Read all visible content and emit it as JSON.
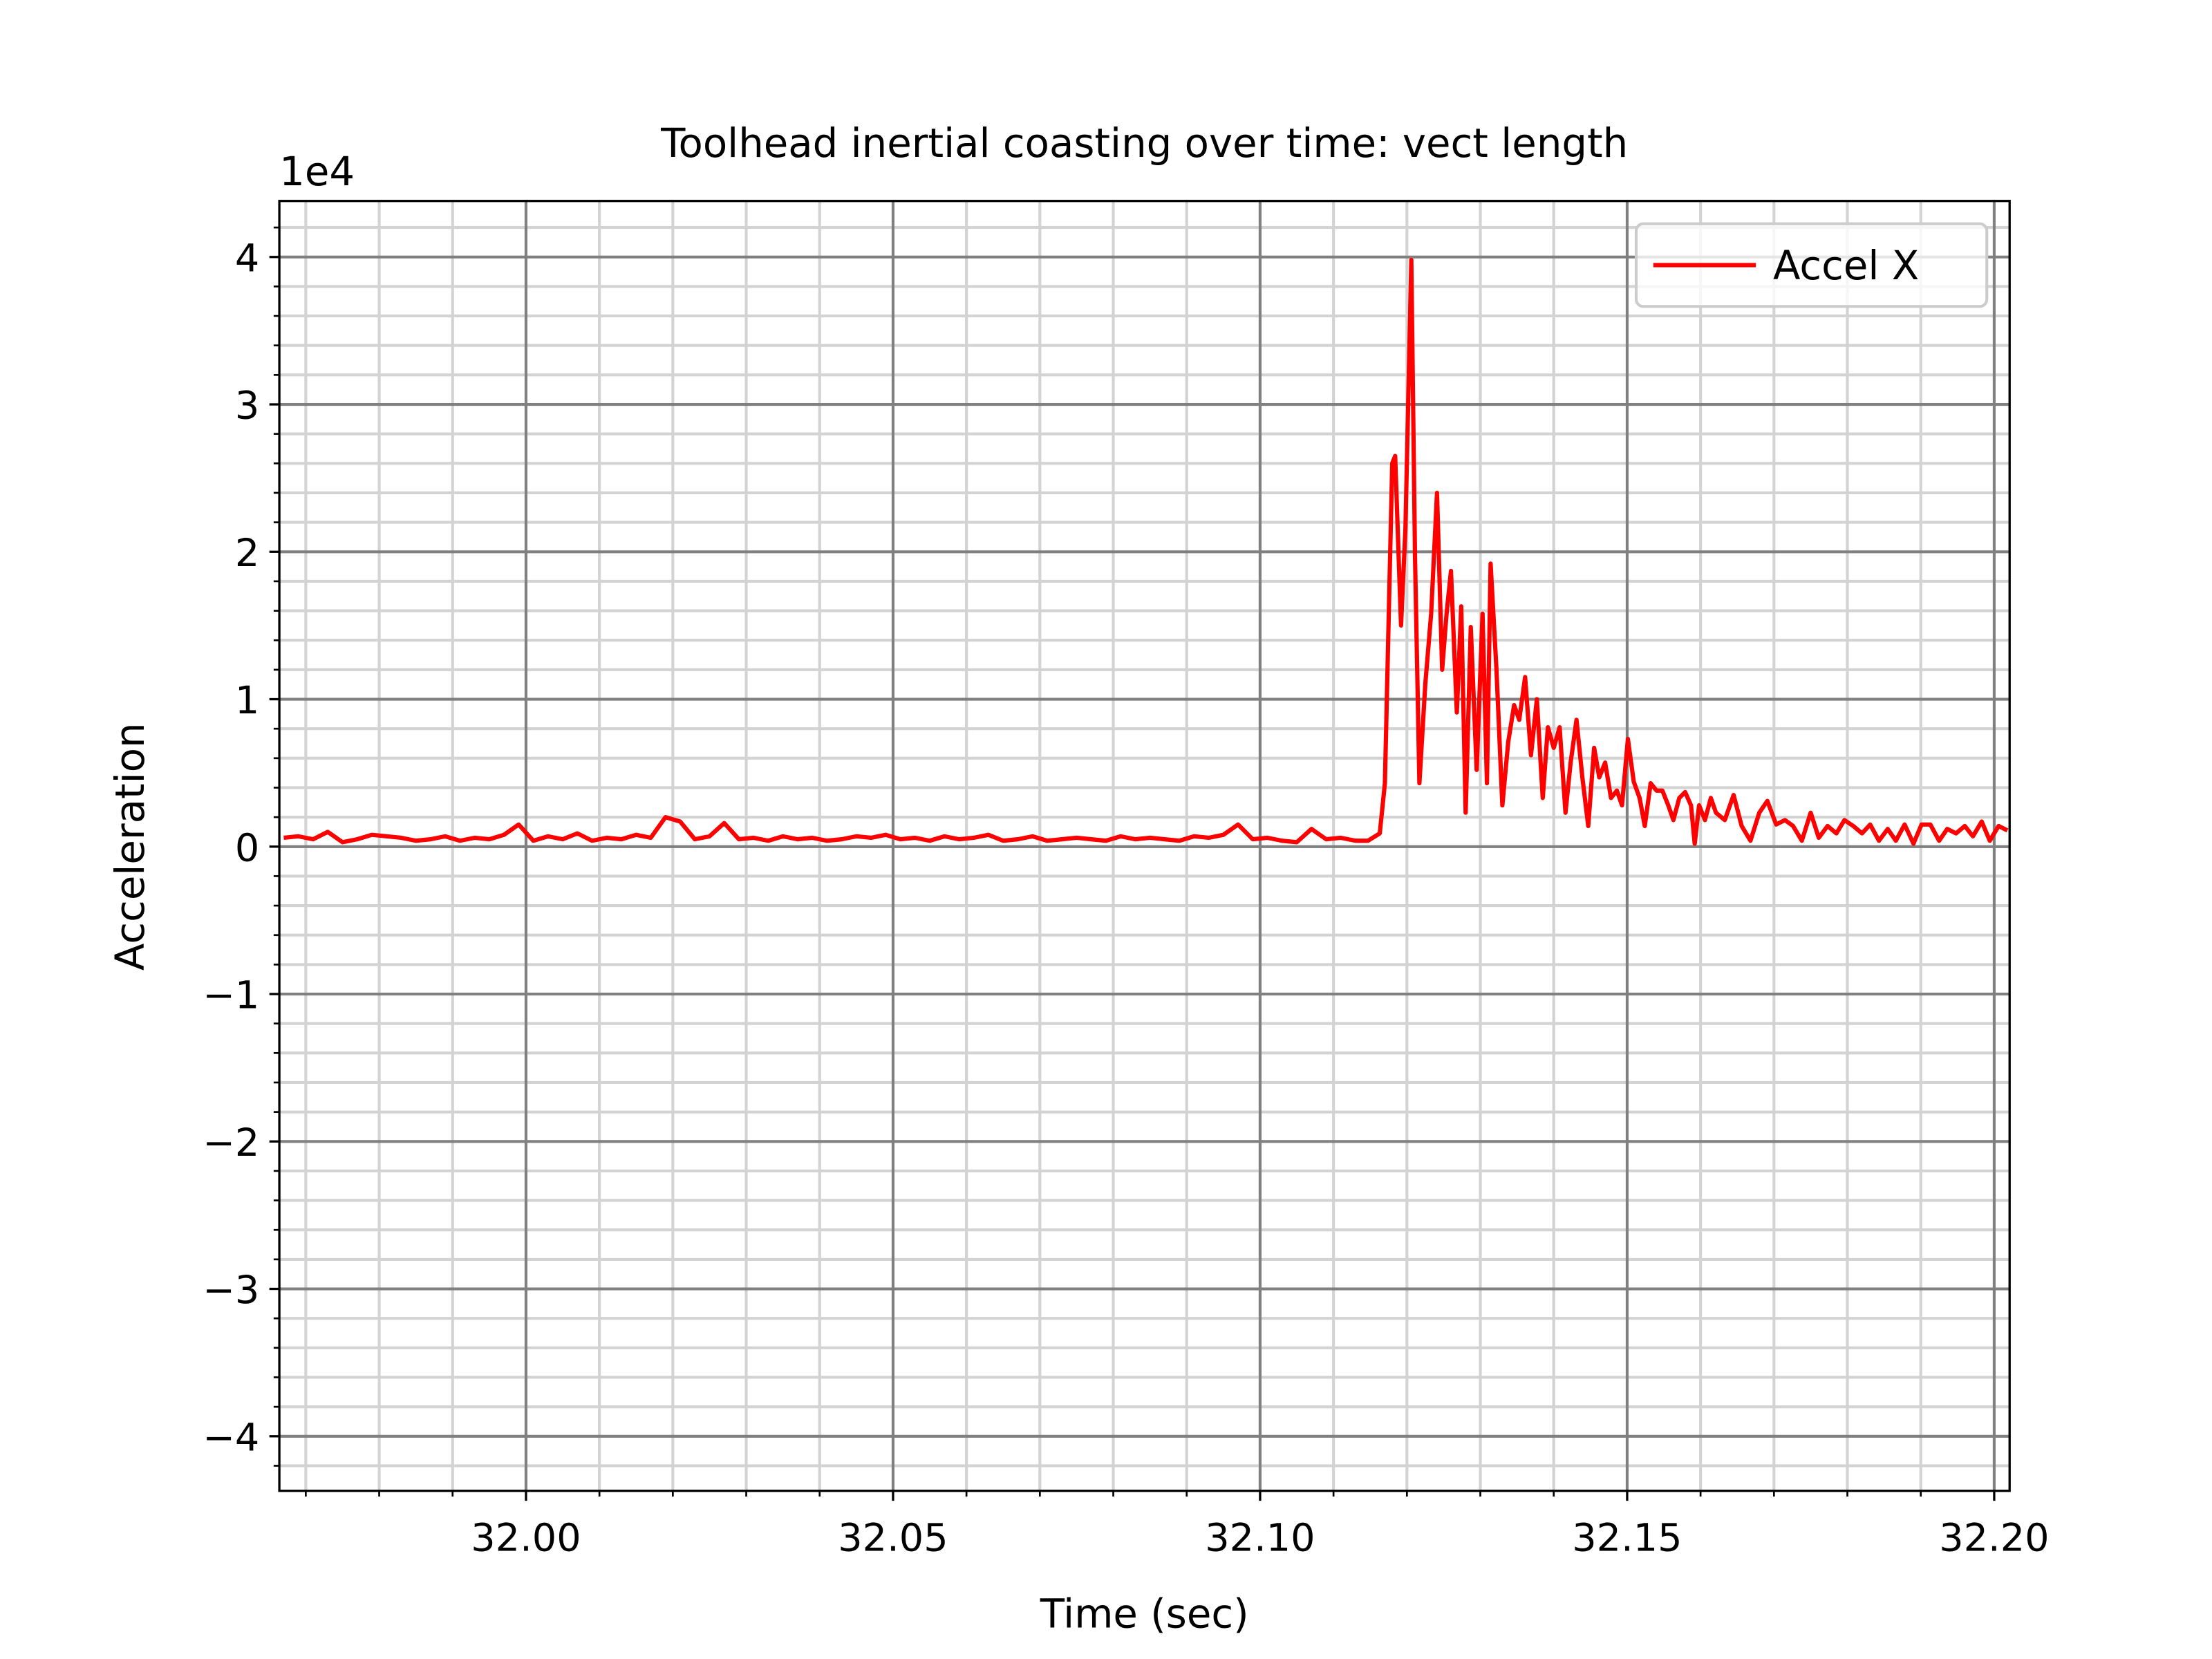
{
  "chart_data": {
    "type": "line",
    "title": "Toolhead inertial coasting over time: vect length",
    "xlabel": "Time (sec)",
    "ylabel": "Acceleration",
    "y_offset_label": "1e4",
    "x": [
      31.967,
      31.969,
      31.971,
      31.973,
      31.975,
      31.977,
      31.979,
      31.981,
      31.983,
      31.985,
      31.987,
      31.989,
      31.991,
      31.993,
      31.995,
      31.997,
      31.999,
      32.001,
      32.003,
      32.005,
      32.007,
      32.009,
      32.011,
      32.013,
      32.015,
      32.017,
      32.019,
      32.021,
      32.023,
      32.025,
      32.027,
      32.029,
      32.031,
      32.033,
      32.035,
      32.037,
      32.039,
      32.041,
      32.043,
      32.045,
      32.047,
      32.049,
      32.051,
      32.053,
      32.055,
      32.057,
      32.059,
      32.061,
      32.063,
      32.065,
      32.067,
      32.069,
      32.071,
      32.073,
      32.075,
      32.077,
      32.079,
      32.081,
      32.083,
      32.085,
      32.087,
      32.089,
      32.091,
      32.093,
      32.095,
      32.097,
      32.099,
      32.101,
      32.103,
      32.105,
      32.107,
      32.109,
      32.111,
      32.113,
      32.1147,
      32.1163,
      32.117,
      32.118,
      32.1184,
      32.1192,
      32.1198,
      32.1206,
      32.1211,
      32.1217,
      32.1225,
      32.1233,
      32.1241,
      32.1248,
      32.1254,
      32.126,
      32.1268,
      32.1274,
      32.128,
      32.1287,
      32.1295,
      32.1303,
      32.1309,
      32.1314,
      32.1322,
      32.133,
      32.1338,
      32.1346,
      32.1353,
      32.1361,
      32.1369,
      32.1377,
      32.1385,
      32.1392,
      32.14,
      32.1408,
      32.1416,
      32.1423,
      32.1431,
      32.1439,
      32.1447,
      32.1455,
      32.1462,
      32.147,
      32.1478,
      32.1486,
      32.1493,
      32.1501,
      32.1509,
      32.1517,
      32.1524,
      32.1532,
      32.154,
      32.1548,
      32.1556,
      32.1563,
      32.1571,
      32.1579,
      32.1587,
      32.1592,
      32.1598,
      32.1606,
      32.1614,
      32.1621,
      32.1633,
      32.1645,
      32.1656,
      32.1668,
      32.168,
      32.1691,
      32.1703,
      32.1715,
      32.1726,
      32.1738,
      32.175,
      32.1761,
      32.1773,
      32.1785,
      32.1796,
      32.1808,
      32.182,
      32.1831,
      32.1843,
      32.1855,
      32.1866,
      32.1878,
      32.189,
      32.1901,
      32.1913,
      32.1925,
      32.1936,
      32.1948,
      32.196,
      32.1971,
      32.1983,
      32.1994,
      32.2006,
      32.2018
    ],
    "series": [
      {
        "name": "Accel X",
        "color": "#ff0000",
        "values": [
          600,
          700,
          500,
          1000,
          300,
          500,
          800,
          700,
          600,
          400,
          500,
          700,
          400,
          600,
          500,
          800,
          1500,
          400,
          700,
          500,
          900,
          400,
          600,
          500,
          800,
          600,
          2000,
          1700,
          500,
          700,
          1600,
          500,
          600,
          400,
          700,
          500,
          600,
          400,
          500,
          700,
          600,
          800,
          500,
          600,
          400,
          700,
          500,
          600,
          800,
          400,
          500,
          700,
          400,
          500,
          600,
          500,
          400,
          700,
          500,
          600,
          500,
          400,
          700,
          600,
          800,
          1500,
          500,
          600,
          400,
          300,
          1200,
          500,
          600,
          400,
          400,
          900,
          4300,
          26000,
          26500,
          15000,
          21600,
          39800,
          19700,
          4300,
          11000,
          15800,
          24000,
          12000,
          15800,
          18700,
          9100,
          16300,
          2300,
          14900,
          5200,
          15800,
          4300,
          19200,
          12000,
          2800,
          7100,
          9600,
          8600,
          11500,
          6200,
          10000,
          3300,
          8100,
          6700,
          8100,
          2300,
          5700,
          8600,
          4700,
          1400,
          6700,
          4700,
          5700,
          3300,
          3800,
          2800,
          7300,
          4400,
          3300,
          1400,
          4300,
          3800,
          3800,
          2800,
          1800,
          3300,
          3700,
          2800,
          200,
          2800,
          1800,
          3300,
          2300,
          1800,
          3500,
          1400,
          400,
          2300,
          3100,
          1500,
          1800,
          1400,
          400,
          2300,
          600,
          1400,
          900,
          1800,
          1400,
          900,
          1500,
          400,
          1200,
          400,
          1500,
          200,
          1500,
          1500,
          400,
          1200,
          900,
          1400,
          700,
          1700,
          400,
          1400,
          1100
        ]
      }
    ],
    "xlim": [
      31.9664,
      32.2021
    ],
    "ylim": [
      -43700,
      43800
    ],
    "xticks": [
      {
        "value": 32.0,
        "label": "32.00"
      },
      {
        "value": 32.05,
        "label": "32.05"
      },
      {
        "value": 32.1,
        "label": "32.10"
      },
      {
        "value": 32.15,
        "label": "32.15"
      },
      {
        "value": 32.2,
        "label": "32.20"
      }
    ],
    "xticks_minor": [
      31.97,
      31.98,
      31.99,
      32.01,
      32.02,
      32.03,
      32.04,
      32.06,
      32.07,
      32.08,
      32.09,
      32.11,
      32.12,
      32.13,
      32.14,
      32.16,
      32.17,
      32.18,
      32.19
    ],
    "yticks": [
      {
        "value": -40000,
        "label": "−4"
      },
      {
        "value": -30000,
        "label": "−3"
      },
      {
        "value": -20000,
        "label": "−2"
      },
      {
        "value": -10000,
        "label": "−1"
      },
      0,
      {
        "value": 10000,
        "label": "1"
      },
      {
        "value": 20000,
        "label": "2"
      },
      {
        "value": 30000,
        "label": "3"
      },
      {
        "value": 40000,
        "label": "4"
      }
    ],
    "yticks_minor": [
      -42000,
      -38000,
      -36000,
      -34000,
      -32000,
      -28000,
      -26000,
      -24000,
      -22000,
      -18000,
      -16000,
      -14000,
      -12000,
      -8000,
      -6000,
      -4000,
      -2000,
      2000,
      4000,
      6000,
      8000,
      12000,
      14000,
      16000,
      18000,
      22000,
      24000,
      26000,
      28000,
      32000,
      34000,
      36000,
      38000,
      42000
    ],
    "grid": true,
    "legend": "upper right"
  }
}
